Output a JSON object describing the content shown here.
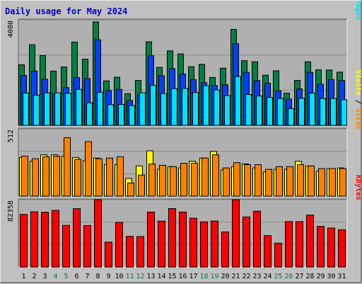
{
  "chart_data": {
    "type": "bar",
    "title": "Daily usage for May 2024",
    "colors": {
      "background": "#c0c0c0",
      "plot_background": "#b0b0b0",
      "title": "#0000cc",
      "hits": "#008040",
      "files": "#0040ff",
      "pages": "#00e0ff",
      "visits": "#ffff00",
      "sites": "#ff8000",
      "kbytes": "#ff0000",
      "weekend_label": "#008040",
      "label": "#000000"
    },
    "categories": [
      "1",
      "2",
      "3",
      "4",
      "5",
      "6",
      "7",
      "8",
      "9",
      "10",
      "11",
      "12",
      "13",
      "14",
      "15",
      "16",
      "17",
      "18",
      "19",
      "20",
      "21",
      "22",
      "23",
      "24",
      "25",
      "26",
      "27",
      "28",
      "29",
      "30",
      "31"
    ],
    "weekend_days": [
      "4",
      "5",
      "11",
      "12",
      "18",
      "19",
      "25",
      "26"
    ],
    "panels": [
      {
        "id": "hits-files-pages",
        "ymax": 4080,
        "ymax_label": "4080",
        "axis_label": [
          "Pages",
          " / ",
          "Files",
          " / ",
          "Hits"
        ],
        "axis_label_colors": [
          "pages",
          "label",
          "files",
          "label",
          "hits"
        ],
        "series": [
          {
            "name": "Hits",
            "color_key": "hits",
            "values": [
              2340,
              3120,
              2700,
              2100,
              2260,
              3220,
              2560,
              4000,
              1720,
              1860,
              1230,
              1740,
              3230,
              2240,
              2880,
              2760,
              2270,
              2360,
              1850,
              2210,
              3710,
              2500,
              2460,
              1940,
              2110,
              1250,
              1740,
              2460,
              2150,
              2140,
              2060
            ]
          },
          {
            "name": "Files",
            "color_key": "files",
            "values": [
              1930,
              2100,
              1780,
              1220,
              1460,
              1850,
              1810,
              3310,
              1350,
              1390,
              960,
              1180,
              2690,
              1920,
              2200,
              1980,
              1770,
              1650,
              1540,
              1570,
              3160,
              2050,
              1730,
              1630,
              1340,
              1020,
              1410,
              2050,
              1590,
              1770,
              1730
            ]
          },
          {
            "name": "Pages",
            "color_key": "pages",
            "values": [
              1250,
              1170,
              1260,
              1260,
              1240,
              1390,
              870,
              1280,
              800,
              810,
              760,
              1260,
              1550,
              1230,
              1420,
              1430,
              1270,
              1530,
              1370,
              1150,
              1890,
              1190,
              1140,
              1080,
              1040,
              650,
              1050,
              1250,
              1040,
              1040,
              990
            ]
          }
        ]
      },
      {
        "id": "sites-visits",
        "ymax": 512,
        "ymax_label": "512",
        "axis_label": [
          "Sites",
          " / ",
          "Visits"
        ],
        "axis_label_colors": [
          "sites",
          "label",
          "visits"
        ],
        "series": [
          {
            "name": "Visits",
            "color_key": "visits",
            "values": [
              295,
              265,
              315,
              315,
              305,
              295,
              270,
              290,
              240,
              240,
              135,
              230,
              345,
              205,
              225,
              215,
              265,
              290,
              340,
              200,
              225,
              245,
              215,
              185,
              205,
              205,
              265,
              230,
              190,
              210,
              215
            ]
          },
          {
            "name": "Sites",
            "color_key": "sites",
            "values": [
              305,
              285,
              300,
              305,
              445,
              280,
              415,
              285,
              290,
              300,
              100,
              160,
              245,
              235,
              225,
              250,
              250,
              290,
              315,
              215,
              255,
              240,
              240,
              205,
              225,
              225,
              240,
              230,
              210,
              210,
              210
            ]
          }
        ]
      },
      {
        "id": "kbytes",
        "ymax": 82358,
        "ymax_label": "82358",
        "axis_label": [
          "KBytes"
        ],
        "axis_label_colors": [
          "kbytes"
        ],
        "series": [
          {
            "name": "KBytes",
            "color_key": "kbytes",
            "values": [
              64300,
              67600,
              67000,
              69300,
              51000,
              71400,
              50700,
              84700,
              30400,
              54600,
              37500,
              37300,
              67300,
              56200,
              71500,
              67300,
              59700,
              55300,
              56300,
              42900,
              82300,
              61300,
              68300,
              38500,
              29200,
              55700,
              55600,
              63600,
              49800,
              47700,
              45600
            ]
          }
        ]
      }
    ]
  }
}
